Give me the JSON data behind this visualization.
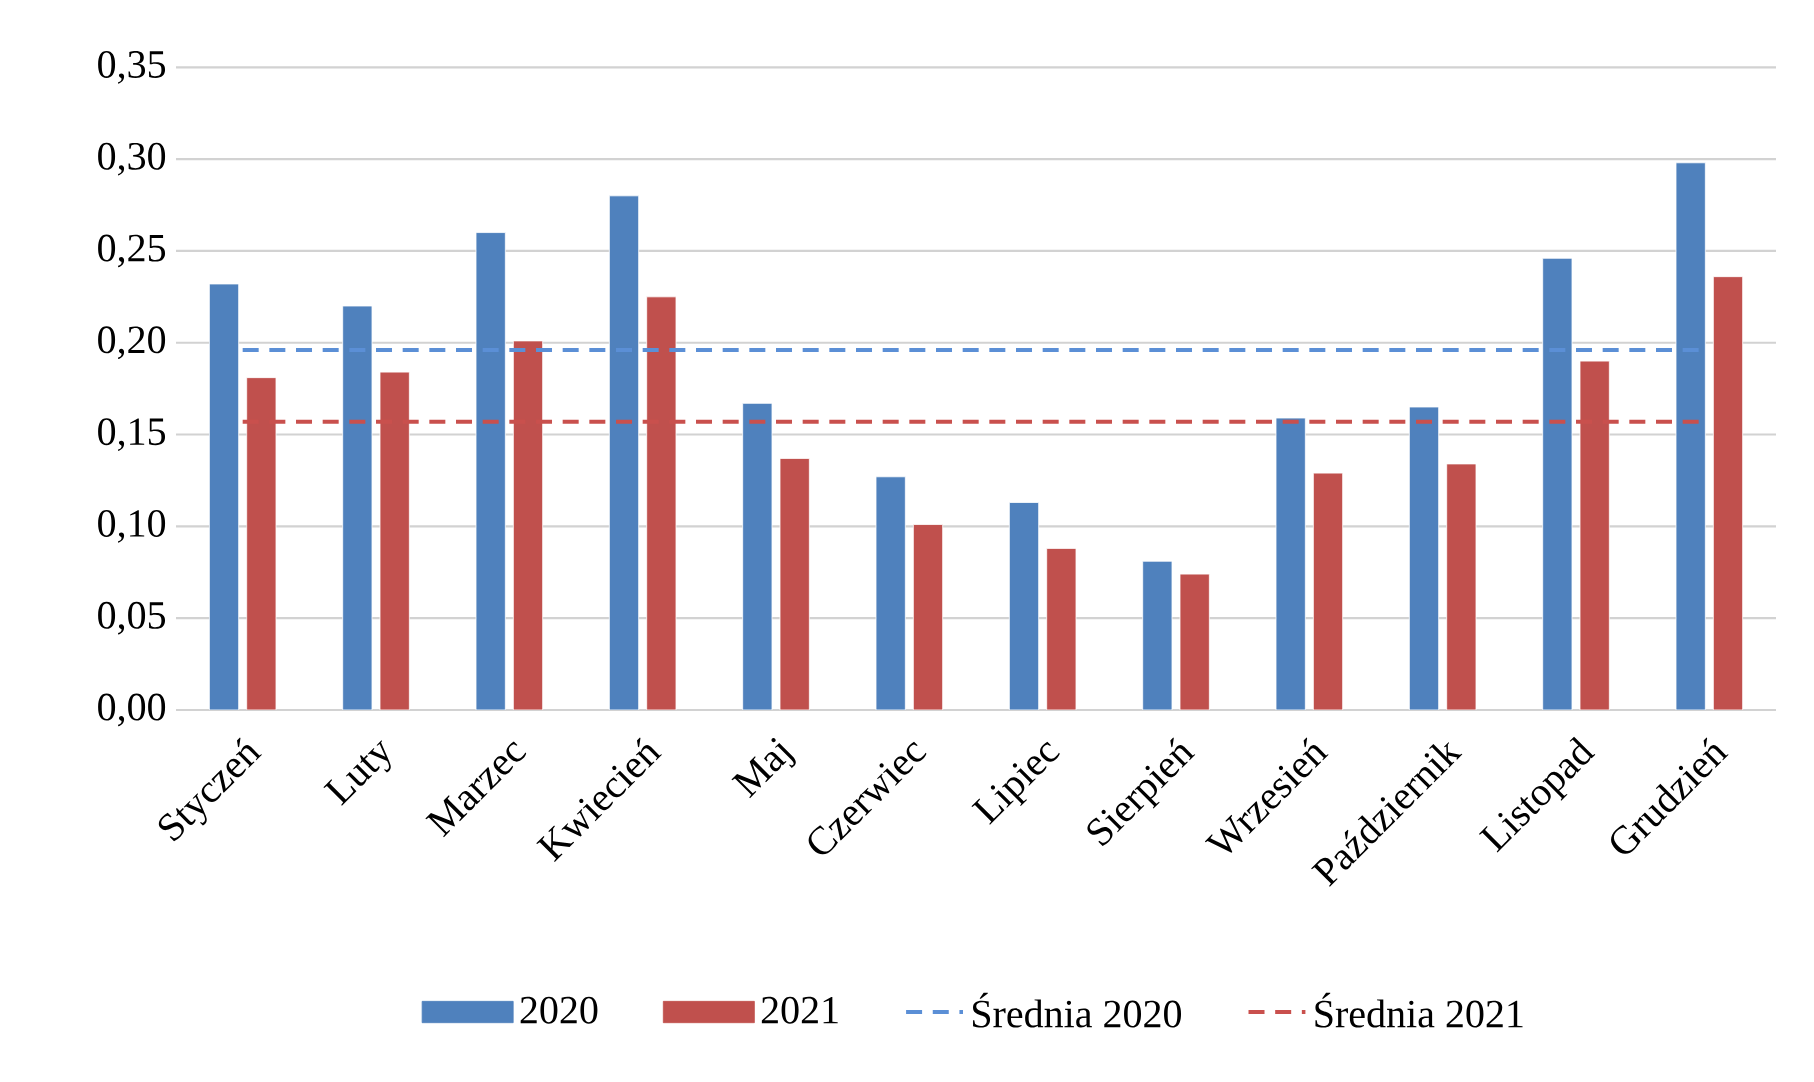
{
  "chart_data": {
    "type": "bar",
    "categories": [
      "Styczeń",
      "Luty",
      "Marzec",
      "Kwiecień",
      "Maj",
      "Czerwiec",
      "Lipiec",
      "Sierpień",
      "Wrzesień",
      "Październik",
      "Listopad",
      "Grudzień"
    ],
    "series": [
      {
        "name": "2020",
        "color": "#4f81bd",
        "values": [
          0.232,
          0.22,
          0.26,
          0.28,
          0.167,
          0.127,
          0.113,
          0.081,
          0.159,
          0.165,
          0.246,
          0.298
        ]
      },
      {
        "name": "2021",
        "color": "#c0504d",
        "values": [
          0.181,
          0.184,
          0.201,
          0.225,
          0.137,
          0.101,
          0.088,
          0.074,
          0.129,
          0.134,
          0.19,
          0.236
        ]
      }
    ],
    "ref_lines": [
      {
        "axis": "y",
        "value": 0.196,
        "label": "Średnia 2020",
        "color": "#5b8fd6",
        "line_style": "dashed"
      },
      {
        "axis": "y",
        "value": 0.157,
        "label": "Średnia 2021",
        "color": "#c9504d",
        "line_style": "dashed"
      }
    ],
    "ylim": [
      0,
      0.35
    ],
    "yticks": [
      {
        "value": 0,
        "label": "0,00"
      },
      {
        "value": 0.05,
        "label": "0,05"
      },
      {
        "value": 0.1,
        "label": "0,10"
      },
      {
        "value": 0.15,
        "label": "0,15"
      },
      {
        "value": 0.2,
        "label": "0,20"
      },
      {
        "value": 0.25,
        "label": "0,25"
      },
      {
        "value": 0.3,
        "label": "0,30"
      },
      {
        "value": 0.35,
        "label": "0,35"
      }
    ],
    "grid": "y",
    "legend": "bottom"
  }
}
